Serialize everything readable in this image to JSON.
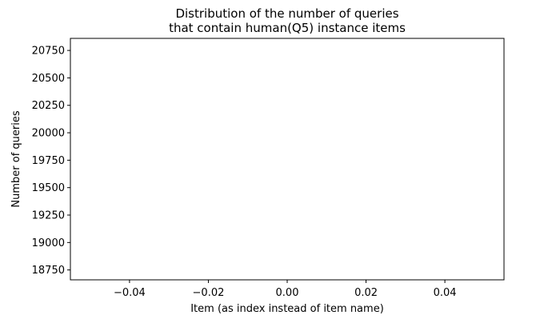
{
  "chart_data": {
    "type": "line",
    "title_lines": [
      "Distribution of the number of queries",
      "that contain human(Q5) instance items"
    ],
    "xlabel": "Item (as index instead of item name)",
    "ylabel": "Number of queries",
    "xlim": [
      -0.055,
      0.055
    ],
    "ylim": [
      18660,
      20860
    ],
    "x_ticks": [
      -0.04,
      -0.02,
      0.0,
      0.02,
      0.04
    ],
    "x_tick_labels": [
      "−0.04",
      "−0.02",
      "0.00",
      "0.02",
      "0.04"
    ],
    "y_ticks": [
      18750,
      19000,
      19250,
      19500,
      19750,
      20000,
      20250,
      20500,
      20750
    ],
    "y_tick_labels": [
      "18750",
      "19000",
      "19250",
      "19500",
      "19750",
      "20000",
      "20250",
      "20500",
      "20750"
    ],
    "series": [],
    "grid": false,
    "colors": {
      "axes": "#000000",
      "background": "#ffffff"
    }
  }
}
